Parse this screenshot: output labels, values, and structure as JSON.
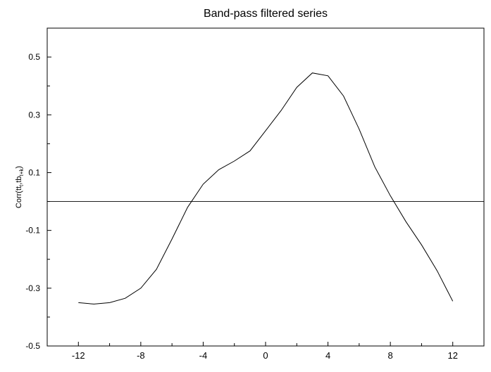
{
  "chart_data": {
    "type": "line",
    "title": "Band-pass filtered series",
    "xlabel": "",
    "ylabel": "Corr(tt",
    "ylabel_sub1": "t",
    "ylabel_mid": ",tb",
    "ylabel_sub2": "t+k",
    "ylabel_end": ")",
    "xlim": [
      -14,
      14
    ],
    "ylim": [
      -0.5,
      0.6
    ],
    "x_ticks": [
      -12,
      -8,
      -4,
      0,
      4,
      8,
      12
    ],
    "x_tick_labels": [
      "-12",
      "-8",
      "-4",
      "0",
      "4",
      "8",
      "12"
    ],
    "y_ticks": [
      -0.5,
      -0.3,
      -0.1,
      0.1,
      0.3,
      0.5
    ],
    "y_tick_labels": [
      "-0.5",
      "-0.3",
      "-0.1",
      "0.1",
      "0.3",
      "0.5"
    ],
    "reference_line_y": 0,
    "grid": false,
    "series": [
      {
        "x": [
          -12,
          -11,
          -10,
          -9,
          -8,
          -7,
          -6,
          -5,
          -4,
          -3,
          -2,
          -1,
          0,
          1,
          2,
          3,
          4,
          5,
          6,
          7,
          8,
          9,
          10,
          11,
          12
        ],
        "y": [
          -0.35,
          -0.355,
          -0.35,
          -0.335,
          -0.3,
          -0.235,
          -0.13,
          -0.02,
          0.06,
          0.11,
          0.14,
          0.175,
          0.245,
          0.315,
          0.395,
          0.445,
          0.435,
          0.365,
          0.25,
          0.12,
          0.02,
          -0.07,
          -0.15,
          -0.24,
          -0.345
        ]
      }
    ]
  }
}
